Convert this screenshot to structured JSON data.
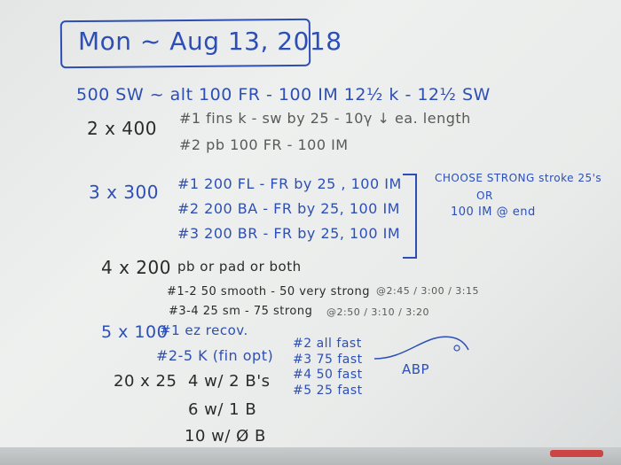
{
  "board": {
    "title": "Mon ~ Aug 13, 2018",
    "warmup": "500 SW ~ alt 100 FR - 100 IM  12½ k - 12½ SW",
    "set1_label": "2 x 400",
    "set1_line1": "#1 fins k - sw by 25 - 10γ ↓ ea. length",
    "set1_line2": "#2 pb 100 FR - 100 IM",
    "set2_label": "3 x 300",
    "set2_line1": "#1  200 FL - FR by 25 , 100 IM",
    "set2_line2": "#2  200 BA - FR by 25,  100 IM",
    "set2_line3": "#3  200 BR - FR by 25,  100 IM",
    "set2_note1": "CHOOSE STRONG stroke 25's",
    "set2_note2": "OR",
    "set2_note3": "100 IM @ end",
    "set3_label": "4 x 200",
    "set3_line0": "pb or pad or both",
    "set3_line1": "#1-2  50 smooth - 50 very strong",
    "set3_line1_times": "@2:45 / 3:00 / 3:15",
    "set3_line2": "#3-4  25 sm - 75 strong",
    "set3_line2_times": "@2:50 / 3:10 / 3:20",
    "set4_label": "5 x 100",
    "set4_line1": "#1 ez recov.",
    "set4_line2": "#2-5  K (fin opt)",
    "set4_sub1": "#2  all fast",
    "set4_sub2": "#3  75 fast",
    "set4_sub3": "#4  50 fast",
    "set4_sub4": "#5  25 fast",
    "set5_label": "20 x 25",
    "set5_line1": "4 w/ 2 B's",
    "set5_line2": "6 w/ 1 B",
    "set5_line3": "10 w/ Ø B",
    "signature": "ABP"
  },
  "colors": {
    "blue_marker": "#2d4fb5",
    "black_marker": "#2a2a2a",
    "board": "#eceeed"
  }
}
